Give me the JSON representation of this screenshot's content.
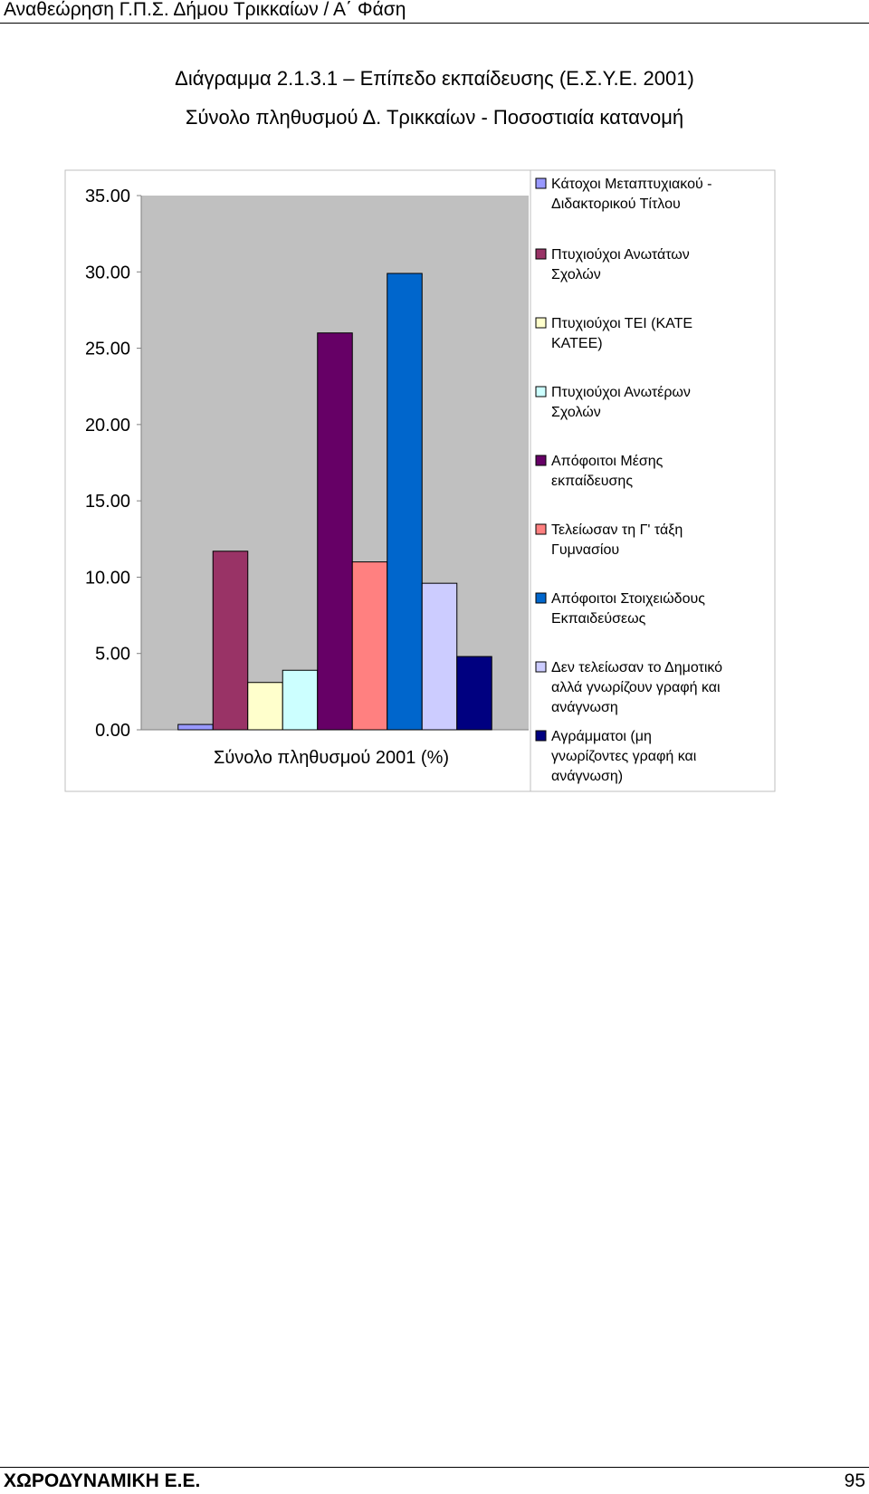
{
  "page": {
    "header": "Αναθεώρηση Γ.Π.Σ. Δήμου Τρικκαίων / Α΄ Φάση",
    "footer_left": "ΧΩΡΟΔΥΝΑΜΙΚΗ Ε.Ε.",
    "page_number": "95"
  },
  "chart_data": {
    "type": "bar",
    "title": "Διάγραμμα 2.1.3.1 – Επίπεδο εκπαίδευσης (Ε.Σ.Υ.Ε. 2001)",
    "subtitle": "Σύνολο πληθυσμού Δ. Τρικκαίων - Ποσοστιαία κατανομή",
    "categories": [
      "Σύνολο πληθυσμού 2001 (%)"
    ],
    "xlabel": "",
    "ylabel": "",
    "ylim": [
      0,
      35
    ],
    "yticks": [
      "0.00",
      "5.00",
      "10.00",
      "15.00",
      "20.00",
      "25.00",
      "30.00",
      "35.00"
    ],
    "grid": false,
    "legend_position": "right",
    "plot_background": "#c0c0c0",
    "series": [
      {
        "name": "Κάτοχοι Μεταπτυχιακού - Διδακτορικού Τίτλου",
        "values": [
          0.35
        ],
        "color": "#9999ff"
      },
      {
        "name": "Πτυχιούχοι Ανωτάτων Σχολών",
        "values": [
          11.7
        ],
        "color": "#993366"
      },
      {
        "name": "Πτυχιούχοι ΤΕΙ (ΚΑΤΕ ΚΑΤΕΕ)",
        "values": [
          3.1
        ],
        "color": "#ffffcc"
      },
      {
        "name": "Πτυχιούχοι Ανωτέρων Σχολών",
        "values": [
          3.9
        ],
        "color": "#ccffff"
      },
      {
        "name": "Απόφοιτοι Μέσης εκπαίδευσης",
        "values": [
          26.0
        ],
        "color": "#660066"
      },
      {
        "name": "Τελείωσαν τη Γ' τάξη Γυμνασίου",
        "values": [
          11.0
        ],
        "color": "#ff8080"
      },
      {
        "name": "Απόφοιτοι Στοιχειώδους Εκπαιδεύσεως",
        "values": [
          29.9
        ],
        "color": "#0066cc"
      },
      {
        "name": "Δεν τελείωσαν το Δημοτικό αλλά γνωρίζουν γραφή και ανάγνωση",
        "values": [
          9.6
        ],
        "color": "#ccccff"
      },
      {
        "name": "Αγράμματοι (μη γνωρίζοντες γραφή και ανάγνωση)",
        "values": [
          4.8
        ],
        "color": "#000080"
      }
    ]
  }
}
